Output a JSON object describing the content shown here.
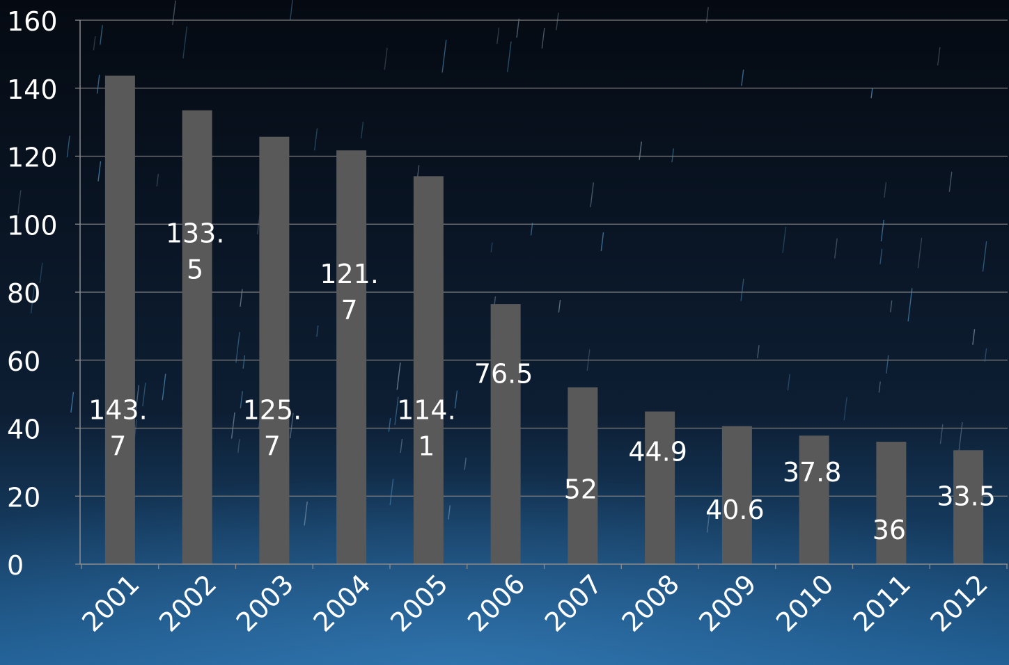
{
  "chart_data": {
    "type": "bar",
    "title": "",
    "xlabel": "",
    "ylabel": "",
    "categories": [
      "2001",
      "2002",
      "2003",
      "2004",
      "2005",
      "2006",
      "2007",
      "2008",
      "2009",
      "2010",
      "2011",
      "2012"
    ],
    "values": [
      143.7,
      133.5,
      125.7,
      121.7,
      114.1,
      76.5,
      52,
      44.9,
      40.6,
      37.8,
      36,
      33.5
    ],
    "data_labels": [
      [
        "143.",
        "7"
      ],
      [
        "133.",
        "5"
      ],
      [
        "125.",
        "7"
      ],
      [
        "121.",
        "7"
      ],
      [
        "114.",
        "1"
      ],
      [
        "76.5"
      ],
      [
        "52"
      ],
      [
        "44.9"
      ],
      [
        "40.6"
      ],
      [
        "37.8"
      ],
      [
        "36"
      ],
      [
        "33.5"
      ]
    ],
    "label_levels": [
      40,
      92,
      40,
      80,
      40,
      56,
      22,
      33,
      16,
      27,
      10,
      20
    ],
    "ylim": [
      0,
      160
    ],
    "yticks": [
      "0",
      "20",
      "40",
      "60",
      "80",
      "100",
      "120",
      "140",
      "160"
    ],
    "grid": true,
    "legend": "none",
    "colors": {
      "bar": "#595959",
      "text": "#ffffff",
      "grid": "#7d7d7d",
      "axis": "#8c8c8c",
      "background_top": "#050a12",
      "background_mid": "#0d1e33",
      "background_bottom": "#1e5b8f"
    }
  }
}
